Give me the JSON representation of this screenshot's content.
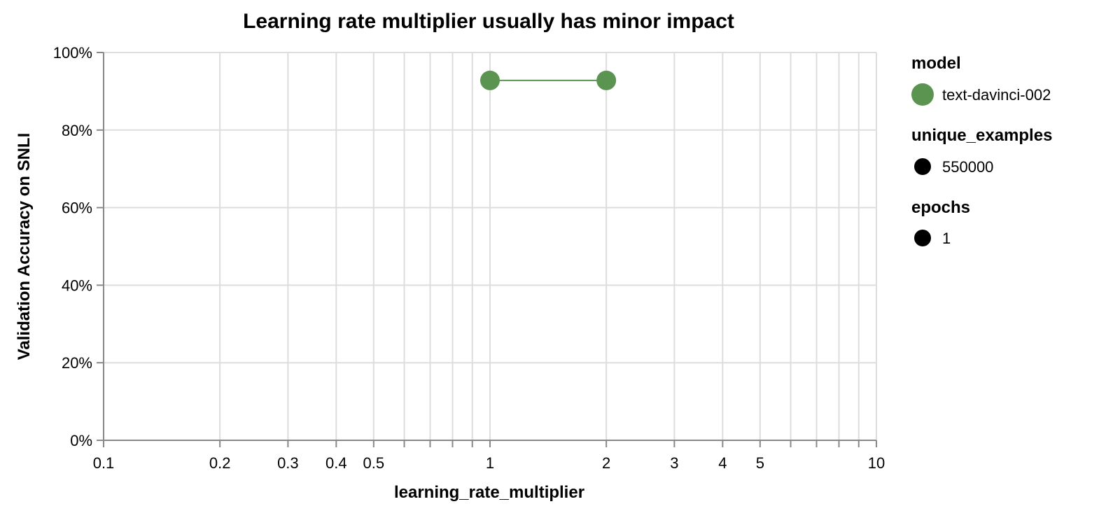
{
  "chart_data": {
    "type": "line",
    "title": "Learning rate multiplier usually has minor impact",
    "xlabel": "learning_rate_multiplier",
    "ylabel": "Validation Accuracy on SNLI",
    "x_scale": "log",
    "xlim": [
      0.1,
      10
    ],
    "ylim": [
      0,
      1
    ],
    "grid": true,
    "x_ticks": [
      0.1,
      0.2,
      0.3,
      0.4,
      0.5,
      0.6,
      0.7,
      0.8,
      0.9,
      1,
      2,
      3,
      4,
      5,
      6,
      7,
      8,
      9,
      10
    ],
    "x_tick_labels": [
      {
        "value": 0.1,
        "label": "0.1"
      },
      {
        "value": 0.2,
        "label": "0.2"
      },
      {
        "value": 0.3,
        "label": "0.3"
      },
      {
        "value": 0.4,
        "label": "0.4"
      },
      {
        "value": 0.5,
        "label": "0.5"
      },
      {
        "value": 1,
        "label": "1"
      },
      {
        "value": 2,
        "label": "2"
      },
      {
        "value": 3,
        "label": "3"
      },
      {
        "value": 4,
        "label": "4"
      },
      {
        "value": 5,
        "label": "5"
      },
      {
        "value": 10,
        "label": "10"
      }
    ],
    "y_ticks": [
      {
        "value": 0,
        "label": "0%"
      },
      {
        "value": 0.2,
        "label": "20%"
      },
      {
        "value": 0.4,
        "label": "40%"
      },
      {
        "value": 0.6,
        "label": "60%"
      },
      {
        "value": 0.8,
        "label": "80%"
      },
      {
        "value": 1,
        "label": "100%"
      }
    ],
    "series": [
      {
        "name": "text-davinci-002",
        "color": "#5b9450",
        "x": [
          1,
          2
        ],
        "y": [
          0.928,
          0.928
        ]
      }
    ],
    "legend": {
      "placement": "right",
      "groups": [
        {
          "title": "model",
          "items": [
            {
              "label": "text-davinci-002",
              "color": "#5b9450"
            }
          ]
        },
        {
          "title": "unique_examples",
          "items": [
            {
              "label": "550000",
              "color": "#000000"
            }
          ]
        },
        {
          "title": "epochs",
          "items": [
            {
              "label": "1",
              "color": "#000000"
            }
          ]
        }
      ]
    }
  }
}
